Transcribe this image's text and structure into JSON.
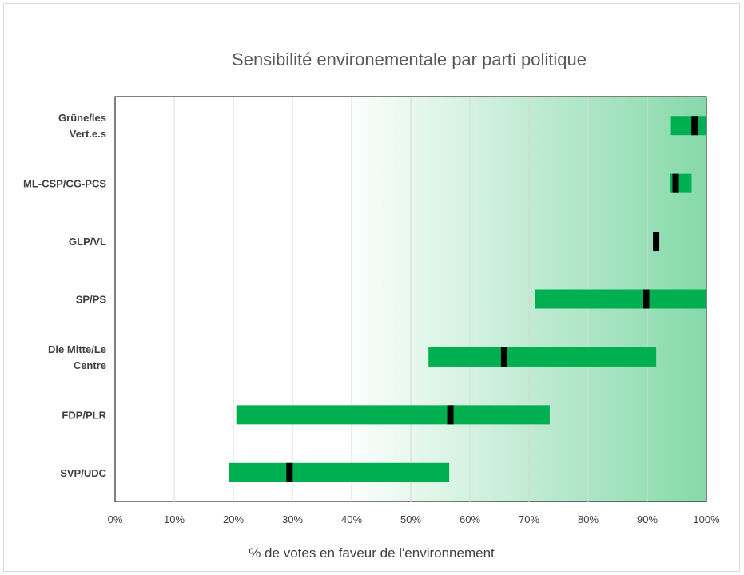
{
  "chart_data": {
    "type": "bar",
    "subtype": "floating-range-with-marker",
    "title": "Sensibilité environementale par parti politique",
    "xlabel": "% de votes en faveur de l'environnement",
    "ylabel": "",
    "xlim": [
      0,
      100
    ],
    "x_ticks": [
      "0%",
      "10%",
      "20%",
      "30%",
      "40%",
      "50%",
      "60%",
      "70%",
      "80%",
      "90%",
      "100%"
    ],
    "grid": "vertical",
    "background_gradient": "white to green, left to right",
    "categories": [
      {
        "lines": [
          "Grüne/les",
          "Vert.e.s"
        ],
        "min": 94,
        "max": 100,
        "marker": 98
      },
      {
        "lines": [
          "ML-CSP/CG-PCS"
        ],
        "min": 93.8,
        "max": 97.5,
        "marker": 94.8
      },
      {
        "lines": [
          "GLP/VL"
        ],
        "min": 91,
        "max": 92,
        "marker": 91.5
      },
      {
        "lines": [
          "SP/PS"
        ],
        "min": 71,
        "max": 100,
        "marker": 89.8
      },
      {
        "lines": [
          "Die Mitte/Le",
          "Centre"
        ],
        "min": 53,
        "max": 91.5,
        "marker": 65.8
      },
      {
        "lines": [
          "FDP/PLR"
        ],
        "min": 20.5,
        "max": 73.5,
        "marker": 56.7
      },
      {
        "lines": [
          "SVP/UDC"
        ],
        "min": 19.3,
        "max": 56.5,
        "marker": 29.5
      }
    ],
    "colors": {
      "range_bar": "#00b050",
      "marker": "#000000",
      "gradient_start": "#ffffff",
      "gradient_end": "#86d9aa",
      "grid": "#d9d9d9"
    }
  }
}
